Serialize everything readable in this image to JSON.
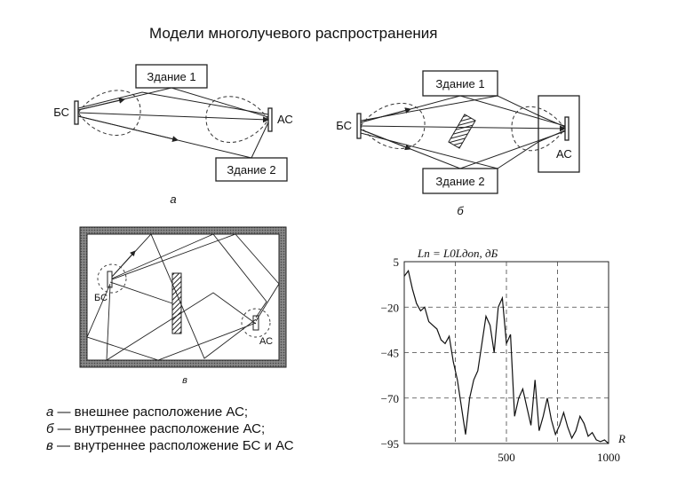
{
  "title": "Модели многолучевого распространения",
  "diagram_a": {
    "building1": "Здание 1",
    "building2": "Здание 2",
    "bs": "БС",
    "as": "АС",
    "caption": "а"
  },
  "diagram_b": {
    "building1": "Здание 1",
    "building2": "Здание 2",
    "bs": "БС",
    "as": "АС",
    "caption": "б"
  },
  "diagram_c": {
    "bs": "БС",
    "as": "АС",
    "caption": "в"
  },
  "legend": [
    {
      "key": "а",
      "text": " — внешнее расположение АС;"
    },
    {
      "key": "б",
      "text": " — внутреннее расположение АС;"
    },
    {
      "key": "в",
      "text": " — внутреннее расположение БС и АС"
    }
  ],
  "chart_data": {
    "type": "line",
    "title": "Lп = L0Lдоп, дБ",
    "xlabel": "R",
    "ylabel": "",
    "x_ticks": [
      500,
      1000
    ],
    "y_ticks": [
      5,
      -20,
      -45,
      -70,
      -95
    ],
    "xlim": [
      0,
      1000
    ],
    "ylim": [
      -95,
      5
    ],
    "grid": true,
    "series": [
      {
        "x": [
          0,
          20,
          40,
          60,
          80,
          100,
          120,
          140,
          160,
          180,
          200,
          220,
          240,
          260,
          280,
          300,
          320,
          340,
          360,
          380,
          400,
          420,
          440,
          460,
          480,
          500,
          520,
          540,
          560,
          580,
          600,
          620,
          640,
          660,
          680,
          700,
          720,
          740,
          760,
          780,
          800,
          820,
          840,
          860,
          880,
          900,
          920,
          940,
          960,
          980,
          1000
        ],
        "y": [
          -3,
          0,
          -10,
          -18,
          -22,
          -20,
          -28,
          -30,
          -32,
          -38,
          -40,
          -36,
          -50,
          -60,
          -75,
          -90,
          -70,
          -60,
          -55,
          -40,
          -25,
          -30,
          -45,
          -20,
          -15,
          -40,
          -35,
          -80,
          -70,
          -65,
          -75,
          -85,
          -60,
          -88,
          -80,
          -70,
          -82,
          -90,
          -85,
          -78,
          -86,
          -92,
          -88,
          -80,
          -84,
          -91,
          -89,
          -93,
          -94,
          -93,
          -95
        ]
      }
    ]
  }
}
